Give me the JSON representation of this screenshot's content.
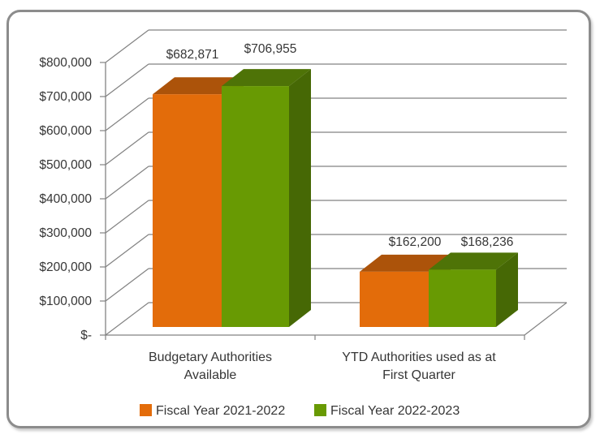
{
  "chart_data": {
    "type": "bar",
    "projection": "3d-clustered-column",
    "title": "",
    "categories": [
      "Budgetary Authorities Available",
      "YTD Authorities used as at First Quarter"
    ],
    "categories_lines": [
      [
        "Budgetary Authorities",
        "Available"
      ],
      [
        "YTD Authorities used as at",
        "First Quarter"
      ]
    ],
    "series": [
      {
        "name": "Fiscal Year 2021-2022",
        "values": [
          682871,
          162200
        ],
        "data_labels": [
          "$682,871",
          "$162,200"
        ],
        "color": "#E36C0A",
        "color_top": "#AC530A",
        "color_side": "#8C4407"
      },
      {
        "name": "Fiscal Year 2022-2023",
        "values": [
          706955,
          168236
        ],
        "data_labels": [
          "$706,955",
          "$168,236"
        ],
        "color": "#689A03",
        "color_top": "#4E7307",
        "color_side": "#466805"
      }
    ],
    "y_axis": {
      "min": 0,
      "max": 800000,
      "step": 100000,
      "tick_labels": [
        "$-",
        "$100,000",
        "$200,000",
        "$300,000",
        "$400,000",
        "$500,000",
        "$600,000",
        "$700,000",
        "$800,000"
      ]
    },
    "legend": {
      "position": "bottom",
      "entries": [
        "Fiscal Year 2021-2022",
        "Fiscal Year 2022-2023"
      ]
    },
    "grid": true
  },
  "styles": {
    "frame_border": "#8C8C8C",
    "grid_color": "#828282",
    "text_color": "#363636",
    "background": "#FFFFFF"
  }
}
